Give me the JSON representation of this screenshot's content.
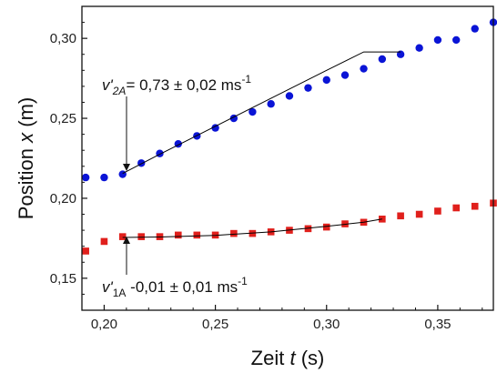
{
  "chart_data": {
    "type": "scatter",
    "xlabel_prefix": "Zeit ",
    "xlabel_var": "t",
    "xlabel_unit": " (s)",
    "ylabel_prefix": "Position ",
    "ylabel_var": "x",
    "ylabel_unit": " (m)",
    "xlim": [
      0.19,
      0.375
    ],
    "ylim": [
      0.13,
      0.32
    ],
    "x_ticks": [
      0.2,
      0.25,
      0.3,
      0.35
    ],
    "x_tick_labels": [
      "0,20",
      "0,25",
      "0,30",
      "0,35"
    ],
    "y_ticks": [
      0.15,
      0.2,
      0.25,
      0.3
    ],
    "y_tick_labels": [
      "0,15",
      "0,20",
      "0,25",
      "0,30"
    ],
    "grid": false,
    "series": [
      {
        "marker": "circle",
        "color": "#0a14d6",
        "x": [
          0.1917,
          0.2,
          0.2083,
          0.2167,
          0.225,
          0.2333,
          0.2417,
          0.25,
          0.2583,
          0.2667,
          0.275,
          0.2833,
          0.2917,
          0.3,
          0.3083,
          0.3167,
          0.325,
          0.3333,
          0.3417,
          0.35,
          0.3583,
          0.3667,
          0.375
        ],
        "y": [
          0.213,
          0.213,
          0.215,
          0.222,
          0.228,
          0.234,
          0.239,
          0.244,
          0.25,
          0.254,
          0.259,
          0.264,
          0.269,
          0.274,
          0.277,
          0.281,
          0.287,
          0.29,
          0.294,
          0.299,
          0.299,
          0.306,
          0.31
        ]
      },
      {
        "marker": "square",
        "color": "#e0201c",
        "x": [
          0.1917,
          0.2,
          0.2083,
          0.2167,
          0.225,
          0.2333,
          0.2417,
          0.25,
          0.2583,
          0.2667,
          0.275,
          0.2833,
          0.2917,
          0.3,
          0.3083,
          0.3167,
          0.325,
          0.3333,
          0.3417,
          0.35,
          0.3583,
          0.3667,
          0.375
        ],
        "y": [
          0.167,
          0.173,
          0.176,
          0.176,
          0.176,
          0.177,
          0.177,
          0.177,
          0.178,
          0.178,
          0.179,
          0.18,
          0.181,
          0.182,
          0.184,
          0.185,
          0.187,
          0.189,
          0.19,
          0.192,
          0.194,
          0.195,
          0.197
        ]
      }
    ],
    "fit_lines": [
      {
        "color": "#000000",
        "x": [
          0.2083,
          0.225,
          0.25,
          0.275,
          0.3,
          0.3167,
          0.3333
        ],
        "y": [
          0.2155,
          0.2275,
          0.245,
          0.2625,
          0.28,
          0.2915,
          0.2915
        ]
      },
      {
        "color": "#000000",
        "x": [
          0.2083,
          0.225,
          0.25,
          0.275,
          0.3,
          0.3167,
          0.325
        ],
        "y": [
          0.1755,
          0.1758,
          0.1768,
          0.179,
          0.1825,
          0.185,
          0.187
        ]
      }
    ],
    "annotations": [
      {
        "var": "v'",
        "sub": "2A",
        "value": "= 0,73 ± 0,02 ms",
        "sup": "-1",
        "anchor_x": 0.2083,
        "anchor_y": 0.2155
      },
      {
        "var": "v'",
        "sub": "1A",
        "value": " -0,01 ± 0,01 ms",
        "sup": "-1",
        "anchor_x": 0.2083,
        "anchor_y": 0.1755
      }
    ]
  }
}
